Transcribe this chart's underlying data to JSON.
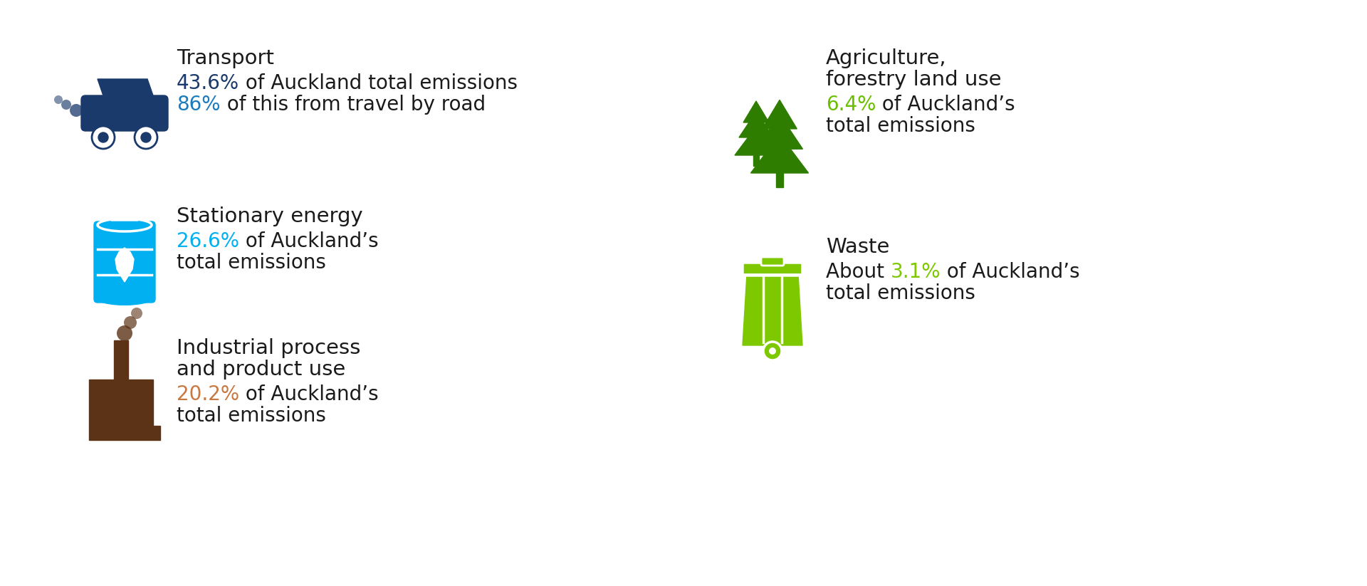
{
  "bg_color": "#ffffff",
  "text_color": "#1a1a1a",
  "transport": {
    "icon_color": "#1a3a6b",
    "pct1_color": "#1a3a6b",
    "pct2_color": "#1a7bbf",
    "title": "Transport",
    "line1_pct": "43.6%",
    "line1_after": " of Auckland total emissions",
    "line2_pct": "86%",
    "line2_after": " of this from travel by road"
  },
  "stationary": {
    "icon_color": "#00b0f0",
    "pct_color": "#00b0f0",
    "title": "Stationary energy",
    "line1_pct": "26.6%",
    "line1_after": " of Auckland’s",
    "line2": "total emissions"
  },
  "industrial": {
    "icon_color": "#5c3317",
    "pct_color": "#c87941",
    "title_line1": "Industrial process",
    "title_line2": "and product use",
    "line1_pct": "20.2%",
    "line1_after": " of Auckland’s",
    "line2": "total emissions"
  },
  "agriculture": {
    "icon_color": "#2e7d00",
    "pct_color": "#6abf00",
    "title_line1": "Agriculture,",
    "title_line2": "forestry land use",
    "line1_pct": "6.4%",
    "line1_after": " of Auckland’s",
    "line2": "total emissions"
  },
  "waste": {
    "icon_color": "#7ec800",
    "pct_color": "#7ec800",
    "title": "Waste",
    "line1_before": "About ",
    "line1_pct": "3.1%",
    "line1_after": " of Auckland’s",
    "line2": "total emissions"
  }
}
